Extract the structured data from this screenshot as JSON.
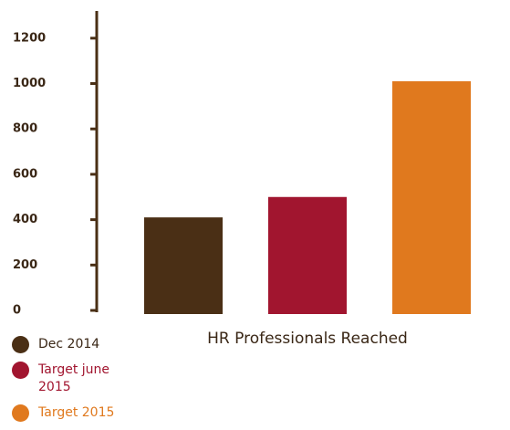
{
  "chart_data": {
    "type": "bar",
    "categories": [
      "HR Professionals Reached"
    ],
    "series": [
      {
        "name": "Dec 2014",
        "color": "#4a2f15",
        "values": [
          410
        ]
      },
      {
        "name": "Target june 2015",
        "color": "#a1152f",
        "values": [
          500
        ]
      },
      {
        "name": "Target 2015",
        "color": "#e0791e",
        "values": [
          1010
        ]
      }
    ],
    "ylim": [
      0,
      1320
    ],
    "yticks": [
      0,
      200,
      400,
      600,
      800,
      1000,
      1200
    ],
    "grid": false,
    "legend": "bottom-left"
  }
}
